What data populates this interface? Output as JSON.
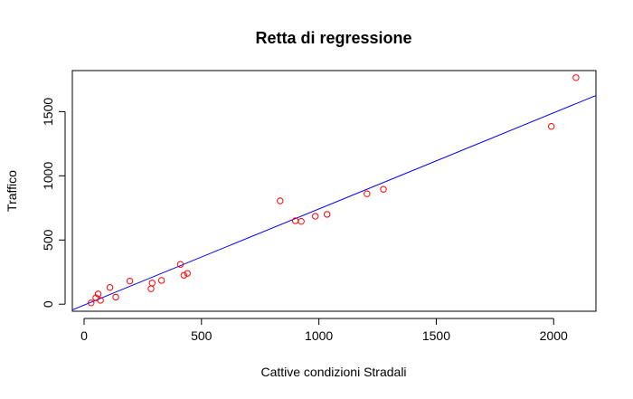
{
  "chart_data": {
    "type": "scatter",
    "title": "Retta di regressione",
    "xlabel": "Cattive condizioni Stradali",
    "ylabel": "Traffico",
    "xlim": [
      -50,
      2180
    ],
    "ylim": [
      -55,
      1820
    ],
    "x_ticks": [
      0,
      500,
      1000,
      1500,
      2000
    ],
    "y_ticks": [
      0,
      500,
      1000,
      1500
    ],
    "x_tick_labels": [
      "0",
      "500",
      "1000",
      "1500",
      "2000"
    ],
    "y_tick_labels": [
      "0",
      "500",
      "1000",
      "1500"
    ],
    "grid": false,
    "point_color": "#ff0000",
    "line_color": "#0000ff",
    "points": [
      {
        "x": 30,
        "y": 10
      },
      {
        "x": 50,
        "y": 50
      },
      {
        "x": 60,
        "y": 80
      },
      {
        "x": 70,
        "y": 30
      },
      {
        "x": 110,
        "y": 130
      },
      {
        "x": 135,
        "y": 55
      },
      {
        "x": 195,
        "y": 180
      },
      {
        "x": 285,
        "y": 120
      },
      {
        "x": 290,
        "y": 165
      },
      {
        "x": 330,
        "y": 185
      },
      {
        "x": 410,
        "y": 310
      },
      {
        "x": 425,
        "y": 225
      },
      {
        "x": 440,
        "y": 240
      },
      {
        "x": 835,
        "y": 805
      },
      {
        "x": 900,
        "y": 650
      },
      {
        "x": 925,
        "y": 645
      },
      {
        "x": 985,
        "y": 685
      },
      {
        "x": 1035,
        "y": 700
      },
      {
        "x": 1205,
        "y": 860
      },
      {
        "x": 1275,
        "y": 895
      },
      {
        "x": 1990,
        "y": 1385
      },
      {
        "x": 2095,
        "y": 1765
      }
    ],
    "regression_line": {
      "intercept": -7,
      "slope": 0.749
    }
  }
}
